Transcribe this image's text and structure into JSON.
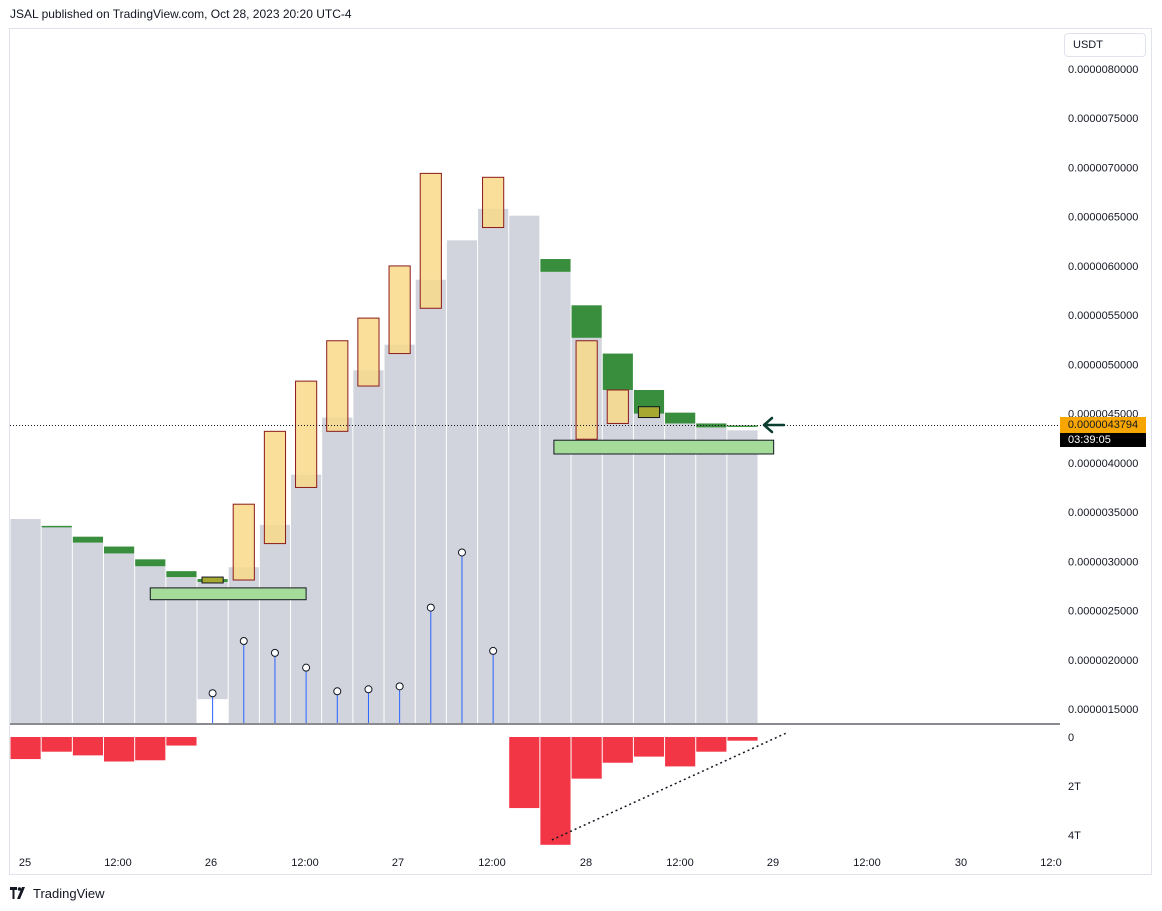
{
  "header": {
    "published_text": "JSAL published on TradingView.com, Oct 28, 2023 20:20 UTC-4"
  },
  "price_scale": {
    "currency": "USDT",
    "ticks": [
      "0.0000080000",
      "0.0000075000",
      "0.0000070000",
      "0.0000065000",
      "0.0000060000",
      "0.0000055000",
      "0.0000050000",
      "0.0000045000",
      "0.0000040000",
      "0.0000035000",
      "0.0000030000",
      "0.0000025000",
      "0.0000020000",
      "0.0000015000"
    ],
    "last_price": "0.0000043794",
    "countdown": "03:39:05"
  },
  "indicator_scale": {
    "ticks": [
      "0",
      "2T",
      "4T"
    ]
  },
  "time_axis": {
    "labels": [
      "25",
      "12:00",
      "26",
      "12:00",
      "27",
      "12:00",
      "28",
      "12:00",
      "29",
      "12:00",
      "30",
      "12:0"
    ]
  },
  "footer": {
    "brand": "TradingView"
  },
  "colors": {
    "bar_fill": "#d1d4dc",
    "green_cap": "#388e3c",
    "orange_box_fill": "#f9d98a",
    "orange_box_border": "#8b1a1a",
    "zone_fill": "#a5dc9a",
    "negative_volume": "#f23645",
    "marker_stem": "#2962ff",
    "arrow": "#0a3d30",
    "price_badge": "#f7a600"
  },
  "chart_data": {
    "type": "bar",
    "ylim": [
      1.3e-06,
      8.3e-06
    ],
    "price_bars": [
      {
        "low": 1.3e-06,
        "high": 3.43e-06,
        "cap_top": null,
        "cap_bottom": null
      },
      {
        "low": 1.3e-06,
        "high": 3.35e-06,
        "cap_top": 3.36e-06,
        "cap_bottom": 3.35e-06
      },
      {
        "low": 1.3e-06,
        "high": 3.19e-06,
        "cap_top": 3.25e-06,
        "cap_bottom": 3.19e-06
      },
      {
        "low": 1.3e-06,
        "high": 3.08e-06,
        "cap_top": 3.15e-06,
        "cap_bottom": 3.08e-06
      },
      {
        "low": 1.3e-06,
        "high": 2.95e-06,
        "cap_top": 3.02e-06,
        "cap_bottom": 2.95e-06
      },
      {
        "low": 1.3e-06,
        "high": 2.84e-06,
        "cap_top": 2.9e-06,
        "cap_bottom": 2.84e-06
      },
      {
        "low": 1.6e-06,
        "high": 2.79e-06,
        "cap_top": 2.82e-06,
        "cap_bottom": 2.79e-06
      },
      {
        "low": 1.3e-06,
        "high": 2.94e-06,
        "cap_top": null,
        "cap_bottom": null
      },
      {
        "low": 1.3e-06,
        "high": 3.37e-06,
        "cap_top": null,
        "cap_bottom": null
      },
      {
        "low": 1.3e-06,
        "high": 3.88e-06,
        "cap_top": null,
        "cap_bottom": null
      },
      {
        "low": 1.3e-06,
        "high": 4.46e-06,
        "cap_top": null,
        "cap_bottom": null
      },
      {
        "low": 1.3e-06,
        "high": 4.94e-06,
        "cap_top": null,
        "cap_bottom": null
      },
      {
        "low": 1.3e-06,
        "high": 5.2e-06,
        "cap_top": null,
        "cap_bottom": null
      },
      {
        "low": 1.3e-06,
        "high": 5.86e-06,
        "cap_top": null,
        "cap_bottom": null
      },
      {
        "low": 1.3e-06,
        "high": 6.26e-06,
        "cap_top": null,
        "cap_bottom": null
      },
      {
        "low": 1.3e-06,
        "high": 6.58e-06,
        "cap_top": null,
        "cap_bottom": null
      },
      {
        "low": 1.3e-06,
        "high": 6.51e-06,
        "cap_top": null,
        "cap_bottom": null
      },
      {
        "low": 1.3e-06,
        "high": 5.94e-06,
        "cap_top": 6.07e-06,
        "cap_bottom": 5.94e-06
      },
      {
        "low": 1.3e-06,
        "high": 5.27e-06,
        "cap_top": 5.6e-06,
        "cap_bottom": 5.27e-06
      },
      {
        "low": 1.3e-06,
        "high": 4.74e-06,
        "cap_top": 5.11e-06,
        "cap_bottom": 4.74e-06
      },
      {
        "low": 1.3e-06,
        "high": 4.5e-06,
        "cap_top": 4.74e-06,
        "cap_bottom": 4.5e-06
      },
      {
        "low": 1.3e-06,
        "high": 4.4e-06,
        "cap_top": 4.51e-06,
        "cap_bottom": 4.4e-06
      },
      {
        "low": 1.3e-06,
        "high": 4.36e-06,
        "cap_top": 4.4e-06,
        "cap_bottom": 4.36e-06
      },
      {
        "low": 1.3e-06,
        "high": 4.33e-06,
        "cap_top": 4.38e-06,
        "cap_bottom": 4.37e-06
      }
    ],
    "orange_boxes": [
      {
        "bar": 7,
        "top": 3.58e-06,
        "bottom": 2.81e-06
      },
      {
        "bar": 8,
        "top": 4.32e-06,
        "bottom": 3.18e-06
      },
      {
        "bar": 9,
        "top": 4.83e-06,
        "bottom": 3.75e-06
      },
      {
        "bar": 10,
        "top": 5.24e-06,
        "bottom": 4.32e-06
      },
      {
        "bar": 11,
        "top": 5.47e-06,
        "bottom": 4.78e-06
      },
      {
        "bar": 12,
        "top": 6e-06,
        "bottom": 5.11e-06
      },
      {
        "bar": 13,
        "top": 6.94e-06,
        "bottom": 5.57e-06
      },
      {
        "bar": 15,
        "top": 6.9e-06,
        "bottom": 6.39e-06
      },
      {
        "bar": 18,
        "top": 5.24e-06,
        "bottom": 4.24e-06
      },
      {
        "bar": 19,
        "top": 4.74e-06,
        "bottom": 4.4e-06
      }
    ],
    "olive_boxes": [
      {
        "bar": 6,
        "top": 2.84e-06,
        "bottom": 2.78e-06
      },
      {
        "bar": 20,
        "top": 4.57e-06,
        "bottom": 4.46e-06
      }
    ],
    "zones": [
      {
        "from_bar": 4.5,
        "to_bar": 9.5,
        "top": 2.73e-06,
        "bottom": 2.61e-06
      },
      {
        "from_bar": 17.45,
        "to_bar": 24.5,
        "top": 4.23e-06,
        "bottom": 4.09e-06
      }
    ],
    "lollipops": [
      {
        "bar": 6,
        "value": 1.66e-06
      },
      {
        "bar": 7,
        "value": 2.19e-06
      },
      {
        "bar": 8,
        "value": 2.07e-06
      },
      {
        "bar": 9,
        "value": 1.92e-06
      },
      {
        "bar": 10,
        "value": 1.68e-06
      },
      {
        "bar": 11,
        "value": 1.7e-06
      },
      {
        "bar": 12,
        "value": 1.73e-06
      },
      {
        "bar": 13,
        "value": 2.53e-06
      },
      {
        "bar": 14,
        "value": 3.09e-06
      },
      {
        "bar": 15,
        "value": 2.09e-06
      }
    ],
    "last_price_value": 4.3794e-06,
    "volume_delta": {
      "ylim": [
        -4.2,
        0.1
      ],
      "values": [
        -0.9,
        -0.6,
        -0.75,
        -1.0,
        -0.95,
        -0.35,
        null,
        null,
        null,
        null,
        null,
        null,
        null,
        null,
        null,
        null,
        -2.9,
        -4.4,
        -1.7,
        -1.05,
        -0.8,
        -1.2,
        -0.6,
        -0.15
      ]
    },
    "trendline": {
      "from_bar": 17.0,
      "from_value": -4.2,
      "to_bar": 24.5,
      "to_value": 0.15
    }
  }
}
